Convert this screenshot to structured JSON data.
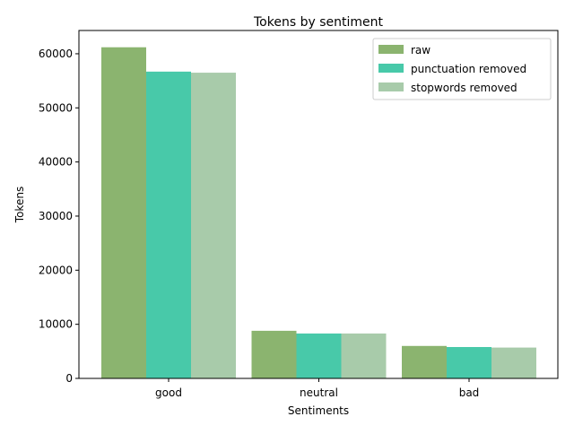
{
  "chart_data": {
    "type": "bar",
    "title": "Tokens by sentiment",
    "xlabel": "Sentiments",
    "ylabel": "Tokens",
    "categories": [
      "good",
      "neutral",
      "bad"
    ],
    "ylim": [
      0,
      64300
    ],
    "yticks": [
      0,
      10000,
      20000,
      30000,
      40000,
      50000,
      60000
    ],
    "grid": false,
    "legend_position": "top-right",
    "series": [
      {
        "name": "raw",
        "color": "#8bb46f",
        "values": [
          61200,
          8800,
          6000
        ]
      },
      {
        "name": "punctuation removed",
        "color": "#48c9a9",
        "values": [
          56700,
          8300,
          5800
        ]
      },
      {
        "name": "stopwords removed",
        "color": "#a8cbaa",
        "values": [
          56500,
          8300,
          5700
        ]
      }
    ]
  }
}
